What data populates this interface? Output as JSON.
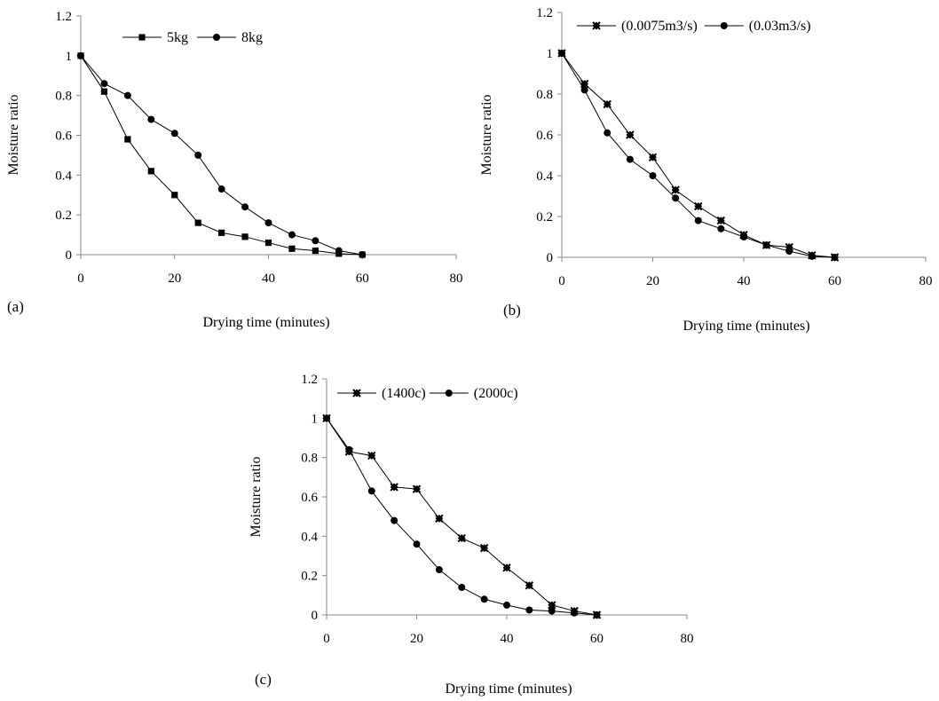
{
  "chart_data": [
    {
      "type": "line",
      "panel_label": "(a)",
      "xlabel": "Drying time (minutes)",
      "ylabel": "Moisture ratio",
      "xlim": [
        0,
        80
      ],
      "ylim": [
        0,
        1.2
      ],
      "xticks": [
        "0",
        "20",
        "40",
        "60",
        "80"
      ],
      "yticks": [
        "0",
        "0.2",
        "0.4",
        "0.6",
        "0.8",
        "1",
        "1.2"
      ],
      "grid": false,
      "legend_position": "top",
      "x": [
        0,
        5,
        10,
        15,
        20,
        25,
        30,
        35,
        40,
        45,
        50,
        55,
        60
      ],
      "series": [
        {
          "name": "5kg",
          "marker": "square",
          "values": [
            1,
            0.82,
            0.58,
            0.42,
            0.3,
            0.16,
            0.11,
            0.09,
            0.06,
            0.03,
            0.02,
            0.005,
            0
          ]
        },
        {
          "name": "8kg",
          "marker": "circle",
          "values": [
            1,
            0.86,
            0.8,
            0.68,
            0.61,
            0.5,
            0.33,
            0.24,
            0.16,
            0.1,
            0.07,
            0.02,
            0
          ]
        }
      ]
    },
    {
      "type": "line",
      "panel_label": "(b)",
      "xlabel": "Drying time (minutes)",
      "ylabel": "Moisture ratio",
      "xlim": [
        0,
        80
      ],
      "ylim": [
        0,
        1.2
      ],
      "xticks": [
        "0",
        "20",
        "40",
        "60",
        "80"
      ],
      "yticks": [
        "0",
        "0.2",
        "0.4",
        "0.6",
        "0.8",
        "1",
        "1.2"
      ],
      "grid": false,
      "legend_position": "top",
      "x": [
        0,
        5,
        10,
        15,
        20,
        25,
        30,
        35,
        40,
        45,
        50,
        55,
        60
      ],
      "series": [
        {
          "name": "(0.0075m3/s)",
          "marker": "star",
          "values": [
            1,
            0.85,
            0.75,
            0.6,
            0.49,
            0.33,
            0.25,
            0.18,
            0.11,
            0.06,
            0.05,
            0.01,
            0
          ]
        },
        {
          "name": "(0.03m3/s)",
          "marker": "circle",
          "values": [
            1,
            0.82,
            0.61,
            0.48,
            0.4,
            0.29,
            0.18,
            0.14,
            0.1,
            0.06,
            0.03,
            0.005,
            0
          ]
        }
      ]
    },
    {
      "type": "line",
      "panel_label": "(c)",
      "xlabel": "Drying time (minutes)",
      "ylabel": "Moisture ratio",
      "xlim": [
        0,
        80
      ],
      "ylim": [
        0,
        1.2
      ],
      "xticks": [
        "0",
        "20",
        "40",
        "60",
        "80"
      ],
      "yticks": [
        "0",
        "0.2",
        "0.4",
        "0.6",
        "0.8",
        "1",
        "1.2"
      ],
      "grid": false,
      "legend_position": "top",
      "x": [
        0,
        5,
        10,
        15,
        20,
        25,
        30,
        35,
        40,
        45,
        50,
        55,
        60
      ],
      "series": [
        {
          "name": "(1400c)",
          "marker": "star",
          "values": [
            1,
            0.83,
            0.81,
            0.65,
            0.64,
            0.49,
            0.39,
            0.34,
            0.24,
            0.15,
            0.05,
            0.02,
            0
          ]
        },
        {
          "name": "(2000c)",
          "marker": "circle",
          "values": [
            1,
            0.84,
            0.63,
            0.48,
            0.36,
            0.23,
            0.14,
            0.08,
            0.05,
            0.025,
            0.02,
            0.01,
            0
          ]
        }
      ]
    }
  ]
}
